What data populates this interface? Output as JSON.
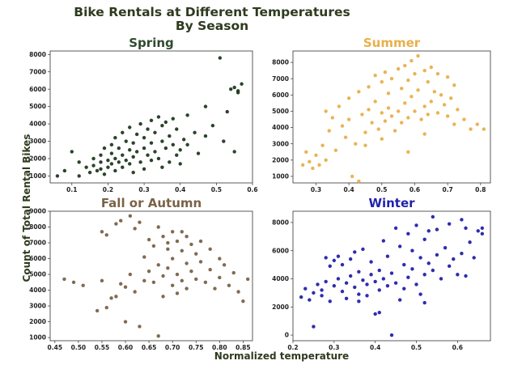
{
  "figure": {
    "title_line1": "Bike Rentals at Different Temperatures",
    "title_line2": "By Season",
    "title_color": "#2e3b1f",
    "xlabel": "Normalized temperature",
    "ylabel": "Count of Total Rental Bikes",
    "label_color": "#2e3b1f"
  },
  "chart_data": [
    {
      "type": "scatter",
      "title": "Spring",
      "color": "#1f3a1f",
      "title_color": "#2f4a2f",
      "xlim": [
        0.04,
        0.6
      ],
      "ylim": [
        600,
        8200
      ],
      "xticks": [
        0.1,
        0.2,
        0.3,
        0.4,
        0.5,
        0.6
      ],
      "xtick_labels": [
        "0.1",
        "0.2",
        "0.3",
        "0.4",
        "0.5",
        "0.6"
      ],
      "yticks": [
        1000,
        2000,
        3000,
        4000,
        5000,
        6000,
        7000,
        8000
      ],
      "ytick_labels": [
        "1000",
        "2000",
        "3000",
        "4000",
        "5000",
        "6000",
        "7000",
        "8000"
      ],
      "points": [
        [
          0.06,
          1000
        ],
        [
          0.08,
          1300
        ],
        [
          0.1,
          2400
        ],
        [
          0.12,
          1800
        ],
        [
          0.12,
          1000
        ],
        [
          0.14,
          1500
        ],
        [
          0.15,
          1200
        ],
        [
          0.16,
          2000
        ],
        [
          0.16,
          1600
        ],
        [
          0.17,
          1300
        ],
        [
          0.18,
          2200
        ],
        [
          0.18,
          1800
        ],
        [
          0.18,
          1400
        ],
        [
          0.19,
          2600
        ],
        [
          0.19,
          1100
        ],
        [
          0.2,
          1900
        ],
        [
          0.2,
          1500
        ],
        [
          0.21,
          2800
        ],
        [
          0.21,
          2300
        ],
        [
          0.21,
          1700
        ],
        [
          0.22,
          3200
        ],
        [
          0.22,
          2000
        ],
        [
          0.22,
          1300
        ],
        [
          0.23,
          2600
        ],
        [
          0.23,
          1800
        ],
        [
          0.24,
          3500
        ],
        [
          0.24,
          2200
        ],
        [
          0.24,
          1500
        ],
        [
          0.25,
          3000
        ],
        [
          0.25,
          1900
        ],
        [
          0.26,
          3800
        ],
        [
          0.26,
          2500
        ],
        [
          0.26,
          1700
        ],
        [
          0.27,
          2900
        ],
        [
          0.27,
          2100
        ],
        [
          0.27,
          1200
        ],
        [
          0.28,
          3400
        ],
        [
          0.28,
          2400
        ],
        [
          0.29,
          4000
        ],
        [
          0.29,
          1800
        ],
        [
          0.3,
          3200
        ],
        [
          0.3,
          2600
        ],
        [
          0.3,
          1400
        ],
        [
          0.31,
          3700
        ],
        [
          0.31,
          2200
        ],
        [
          0.32,
          4200
        ],
        [
          0.32,
          2900
        ],
        [
          0.32,
          1900
        ],
        [
          0.33,
          3500
        ],
        [
          0.33,
          2400
        ],
        [
          0.34,
          4400
        ],
        [
          0.34,
          2000
        ],
        [
          0.35,
          3900
        ],
        [
          0.35,
          3000
        ],
        [
          0.35,
          1500
        ],
        [
          0.36,
          2600
        ],
        [
          0.36,
          4100
        ],
        [
          0.37,
          3300
        ],
        [
          0.37,
          1800
        ],
        [
          0.38,
          4300
        ],
        [
          0.38,
          2800
        ],
        [
          0.39,
          2200
        ],
        [
          0.39,
          3700
        ],
        [
          0.4,
          2500
        ],
        [
          0.4,
          1700
        ],
        [
          0.41,
          3100
        ],
        [
          0.42,
          4500
        ],
        [
          0.42,
          2800
        ],
        [
          0.44,
          3500
        ],
        [
          0.45,
          2300
        ],
        [
          0.47,
          5000
        ],
        [
          0.47,
          3300
        ],
        [
          0.49,
          3900
        ],
        [
          0.51,
          7800
        ],
        [
          0.52,
          3000
        ],
        [
          0.53,
          4700
        ],
        [
          0.54,
          6000
        ],
        [
          0.55,
          6100
        ],
        [
          0.55,
          2400
        ],
        [
          0.56,
          5900
        ],
        [
          0.57,
          6300
        ],
        [
          0.56,
          5800
        ]
      ]
    },
    {
      "type": "scatter",
      "title": "Summer",
      "color": "#e8b04a",
      "title_color": "#e8b04a",
      "xlim": [
        0.23,
        0.83
      ],
      "ylim": [
        600,
        8700
      ],
      "xticks": [
        0.3,
        0.4,
        0.5,
        0.6,
        0.7,
        0.8
      ],
      "xtick_labels": [
        "0.3",
        "0.4",
        "0.5",
        "0.6",
        "0.7",
        "0.8"
      ],
      "yticks": [
        1000,
        2000,
        3000,
        4000,
        5000,
        6000,
        7000,
        8000
      ],
      "ytick_labels": [
        "1000",
        "2000",
        "3000",
        "4000",
        "5000",
        "6000",
        "7000",
        "8000"
      ],
      "points": [
        [
          0.26,
          1700
        ],
        [
          0.27,
          2500
        ],
        [
          0.28,
          1900
        ],
        [
          0.29,
          1500
        ],
        [
          0.3,
          2300
        ],
        [
          0.31,
          1700
        ],
        [
          0.32,
          2900
        ],
        [
          0.33,
          2000
        ],
        [
          0.33,
          5000
        ],
        [
          0.34,
          3800
        ],
        [
          0.35,
          4600
        ],
        [
          0.36,
          2600
        ],
        [
          0.37,
          5300
        ],
        [
          0.38,
          4100
        ],
        [
          0.39,
          3400
        ],
        [
          0.4,
          5800
        ],
        [
          0.4,
          4500
        ],
        [
          0.41,
          1000
        ],
        [
          0.42,
          3000
        ],
        [
          0.43,
          6200
        ],
        [
          0.43,
          700
        ],
        [
          0.44,
          4800
        ],
        [
          0.45,
          3700
        ],
        [
          0.46,
          6500
        ],
        [
          0.46,
          5100
        ],
        [
          0.47,
          4300
        ],
        [
          0.48,
          7200
        ],
        [
          0.48,
          5600
        ],
        [
          0.49,
          3900
        ],
        [
          0.5,
          6800
        ],
        [
          0.5,
          4900
        ],
        [
          0.51,
          7400
        ],
        [
          0.51,
          4400
        ],
        [
          0.52,
          6100
        ],
        [
          0.52,
          5200
        ],
        [
          0.53,
          7000
        ],
        [
          0.53,
          4700
        ],
        [
          0.54,
          3800
        ],
        [
          0.55,
          7600
        ],
        [
          0.55,
          5000
        ],
        [
          0.56,
          6400
        ],
        [
          0.56,
          4300
        ],
        [
          0.57,
          7800
        ],
        [
          0.57,
          5500
        ],
        [
          0.58,
          6900
        ],
        [
          0.58,
          4600
        ],
        [
          0.59,
          8100
        ],
        [
          0.59,
          5900
        ],
        [
          0.6,
          7300
        ],
        [
          0.6,
          5000
        ],
        [
          0.61,
          8400
        ],
        [
          0.61,
          6300
        ],
        [
          0.62,
          4500
        ],
        [
          0.63,
          7500
        ],
        [
          0.63,
          5300
        ],
        [
          0.64,
          6800
        ],
        [
          0.64,
          4800
        ],
        [
          0.65,
          7700
        ],
        [
          0.65,
          5600
        ],
        [
          0.66,
          6200
        ],
        [
          0.67,
          7300
        ],
        [
          0.67,
          4900
        ],
        [
          0.68,
          6000
        ],
        [
          0.69,
          5400
        ],
        [
          0.7,
          7100
        ],
        [
          0.7,
          4700
        ],
        [
          0.71,
          5800
        ],
        [
          0.72,
          6600
        ],
        [
          0.72,
          4200
        ],
        [
          0.73,
          5100
        ],
        [
          0.75,
          4500
        ],
        [
          0.77,
          3900
        ],
        [
          0.79,
          4200
        ],
        [
          0.81,
          3900
        ],
        [
          0.45,
          2900
        ],
        [
          0.5,
          3300
        ],
        [
          0.58,
          2500
        ],
        [
          0.63,
          3600
        ]
      ]
    },
    {
      "type": "scatter",
      "title": "Fall or Autumn",
      "color": "#7a6248",
      "title_color": "#7a6248",
      "xlim": [
        0.44,
        0.87
      ],
      "ylim": [
        800,
        9000
      ],
      "xticks": [
        0.45,
        0.5,
        0.55,
        0.6,
        0.65,
        0.7,
        0.75,
        0.8,
        0.85
      ],
      "xtick_labels": [
        "0.45",
        "0.50",
        "0.55",
        "0.60",
        "0.65",
        "0.70",
        "0.75",
        "0.80",
        "0.85"
      ],
      "yticks": [
        1000,
        2000,
        3000,
        4000,
        5000,
        6000,
        7000,
        8000,
        9000
      ],
      "ytick_labels": [
        "1000",
        "2000",
        "3000",
        "4000",
        "5000",
        "6000",
        "7000",
        "8000",
        "9000"
      ],
      "points": [
        [
          0.47,
          4700
        ],
        [
          0.49,
          4500
        ],
        [
          0.51,
          4300
        ],
        [
          0.54,
          2700
        ],
        [
          0.55,
          7700
        ],
        [
          0.55,
          4600
        ],
        [
          0.56,
          7500
        ],
        [
          0.57,
          3500
        ],
        [
          0.58,
          8200
        ],
        [
          0.58,
          3600
        ],
        [
          0.59,
          8400
        ],
        [
          0.6,
          4200
        ],
        [
          0.6,
          2000
        ],
        [
          0.61,
          8700
        ],
        [
          0.61,
          5000
        ],
        [
          0.62,
          7900
        ],
        [
          0.62,
          3900
        ],
        [
          0.63,
          8300
        ],
        [
          0.63,
          1700
        ],
        [
          0.64,
          4600
        ],
        [
          0.64,
          6100
        ],
        [
          0.65,
          7200
        ],
        [
          0.65,
          5200
        ],
        [
          0.66,
          6800
        ],
        [
          0.66,
          4500
        ],
        [
          0.67,
          8000
        ],
        [
          0.67,
          5600
        ],
        [
          0.67,
          1100
        ],
        [
          0.68,
          7400
        ],
        [
          0.68,
          4900
        ],
        [
          0.68,
          3600
        ],
        [
          0.69,
          6600
        ],
        [
          0.69,
          5400
        ],
        [
          0.7,
          7700
        ],
        [
          0.7,
          4300
        ],
        [
          0.7,
          6000
        ],
        [
          0.71,
          7100
        ],
        [
          0.71,
          5000
        ],
        [
          0.71,
          3800
        ],
        [
          0.72,
          6500
        ],
        [
          0.72,
          4600
        ],
        [
          0.73,
          7400
        ],
        [
          0.73,
          5700
        ],
        [
          0.73,
          4100
        ],
        [
          0.74,
          6900
        ],
        [
          0.74,
          5200
        ],
        [
          0.75,
          4700
        ],
        [
          0.75,
          6300
        ],
        [
          0.76,
          7100
        ],
        [
          0.76,
          5800
        ],
        [
          0.77,
          4500
        ],
        [
          0.78,
          6600
        ],
        [
          0.78,
          5300
        ],
        [
          0.79,
          4100
        ],
        [
          0.8,
          6000
        ],
        [
          0.8,
          4800
        ],
        [
          0.81,
          5600
        ],
        [
          0.82,
          4300
        ],
        [
          0.83,
          5100
        ],
        [
          0.84,
          3900
        ],
        [
          0.85,
          3300
        ],
        [
          0.86,
          4700
        ],
        [
          0.56,
          2900
        ],
        [
          0.59,
          4400
        ],
        [
          0.69,
          7000
        ],
        [
          0.72,
          7700
        ]
      ]
    },
    {
      "type": "scatter",
      "title": "Winter",
      "color": "#2222aa",
      "title_color": "#2222aa",
      "xlim": [
        0.2,
        0.68
      ],
      "ylim": [
        -400,
        8800
      ],
      "xticks": [
        0.2,
        0.3,
        0.4,
        0.5,
        0.6
      ],
      "xtick_labels": [
        "0.2",
        "0.3",
        "0.4",
        "0.5",
        "0.6"
      ],
      "yticks": [
        0,
        2000,
        4000,
        6000,
        8000
      ],
      "ytick_labels": [
        "0",
        "2000",
        "4000",
        "6000",
        "8000"
      ],
      "points": [
        [
          0.22,
          2700
        ],
        [
          0.23,
          3300
        ],
        [
          0.24,
          2500
        ],
        [
          0.25,
          3000
        ],
        [
          0.25,
          600
        ],
        [
          0.26,
          3600
        ],
        [
          0.27,
          3200
        ],
        [
          0.27,
          2800
        ],
        [
          0.28,
          5500
        ],
        [
          0.28,
          3800
        ],
        [
          0.29,
          4900
        ],
        [
          0.29,
          2400
        ],
        [
          0.3,
          5300
        ],
        [
          0.3,
          3500
        ],
        [
          0.31,
          5600
        ],
        [
          0.31,
          4000
        ],
        [
          0.32,
          3100
        ],
        [
          0.32,
          5000
        ],
        [
          0.33,
          3700
        ],
        [
          0.33,
          2600
        ],
        [
          0.34,
          5400
        ],
        [
          0.34,
          4200
        ],
        [
          0.35,
          3400
        ],
        [
          0.35,
          5900
        ],
        [
          0.36,
          4500
        ],
        [
          0.36,
          2900
        ],
        [
          0.37,
          3900
        ],
        [
          0.37,
          6100
        ],
        [
          0.38,
          3600
        ],
        [
          0.38,
          2800
        ],
        [
          0.39,
          4300
        ],
        [
          0.39,
          5200
        ],
        [
          0.4,
          3800
        ],
        [
          0.4,
          1500
        ],
        [
          0.41,
          4600
        ],
        [
          0.41,
          3200
        ],
        [
          0.42,
          6700
        ],
        [
          0.42,
          4000
        ],
        [
          0.43,
          3500
        ],
        [
          0.43,
          5600
        ],
        [
          0.44,
          4400
        ],
        [
          0.44,
          0
        ],
        [
          0.45,
          7600
        ],
        [
          0.45,
          3700
        ],
        [
          0.46,
          6300
        ],
        [
          0.46,
          2500
        ],
        [
          0.47,
          5000
        ],
        [
          0.47,
          3300
        ],
        [
          0.48,
          7200
        ],
        [
          0.48,
          4100
        ],
        [
          0.49,
          6000
        ],
        [
          0.49,
          4700
        ],
        [
          0.5,
          7800
        ],
        [
          0.5,
          3600
        ],
        [
          0.51,
          5500
        ],
        [
          0.51,
          2900
        ],
        [
          0.52,
          6800
        ],
        [
          0.52,
          4300
        ],
        [
          0.53,
          7400
        ],
        [
          0.53,
          5100
        ],
        [
          0.54,
          8400
        ],
        [
          0.54,
          4600
        ],
        [
          0.55,
          7500
        ],
        [
          0.55,
          5700
        ],
        [
          0.56,
          4000
        ],
        [
          0.57,
          6200
        ],
        [
          0.58,
          7900
        ],
        [
          0.58,
          4900
        ],
        [
          0.59,
          5400
        ],
        [
          0.6,
          4300
        ],
        [
          0.61,
          8200
        ],
        [
          0.61,
          5800
        ],
        [
          0.62,
          7600
        ],
        [
          0.62,
          4200
        ],
        [
          0.63,
          6600
        ],
        [
          0.64,
          5500
        ],
        [
          0.65,
          7400
        ],
        [
          0.66,
          7200
        ],
        [
          0.66,
          7600
        ],
        [
          0.41,
          1600
        ],
        [
          0.36,
          2400
        ],
        [
          0.52,
          2300
        ]
      ]
    }
  ]
}
